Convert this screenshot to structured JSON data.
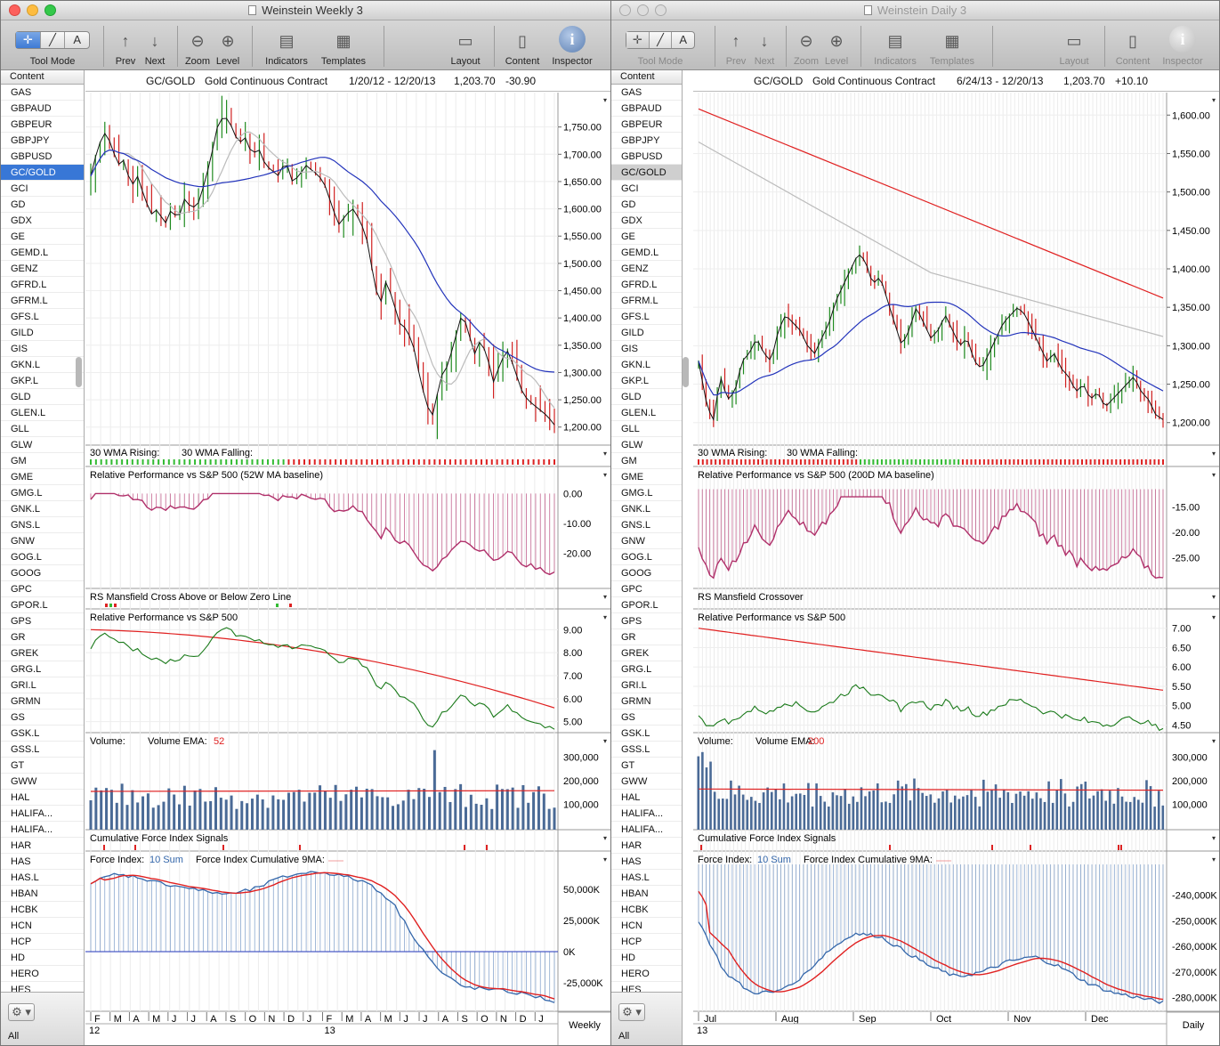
{
  "windows": [
    {
      "title": "Weinstein Weekly 3",
      "header": {
        "symbol": "GC/GOLD",
        "name": "Gold Continuous Contract",
        "range": "1/20/12 - 12/20/13",
        "price": "1,203.70",
        "change": "-30.90"
      },
      "selected": "GC/GOLD",
      "panels": {
        "wma": {
          "label": "30 WMA Rising:",
          "label2": "30 WMA Falling:"
        },
        "rp": {
          "label": "Relative Performance vs S&P 500 (52W MA baseline)",
          "ticks": [
            "0.00",
            "-10.00",
            "-20.00"
          ]
        },
        "rsm": {
          "label": "RS Mansfield Cross Above or Below Zero Line"
        },
        "rp2": {
          "label": "Relative Performance vs S&P 500",
          "ticks": [
            "9.00",
            "8.00",
            "7.00",
            "6.00",
            "5.00"
          ]
        },
        "vol": {
          "label": "Volume:",
          "ema_label": "Volume EMA:",
          "ema_value": "52",
          "ticks": [
            "300,000",
            "200,000",
            "100,000"
          ]
        },
        "cfs": {
          "label": "Cumulative Force Index Signals"
        },
        "fi": {
          "label": "Force Index:",
          "sum_label": "10 Sum",
          "cum_label": "Force Index Cumulative 9MA:",
          "ticks": [
            "50,000K",
            "25,000K",
            "0K",
            "-25,000K"
          ]
        }
      },
      "price_ticks": [
        "1,750.00",
        "1,700.00",
        "1,650.00",
        "1,600.00",
        "1,550.00",
        "1,500.00",
        "1,450.00",
        "1,400.00",
        "1,350.00",
        "1,300.00",
        "1,250.00",
        "1,200.00"
      ],
      "x_months": [
        "F",
        "M",
        "A",
        "M",
        "J",
        "J",
        "A",
        "S",
        "O",
        "N",
        "D",
        "J",
        "F",
        "M",
        "A",
        "M",
        "J",
        "J",
        "A",
        "S",
        "O",
        "N",
        "D",
        "J"
      ],
      "x_years": [
        "12",
        "13"
      ],
      "period": "Weekly"
    },
    {
      "title": "Weinstein Daily 3",
      "header": {
        "symbol": "GC/GOLD",
        "name": "Gold Continuous Contract",
        "range": "6/24/13 - 12/20/13",
        "price": "1,203.70",
        "change": "+10.10"
      },
      "selected": "GC/GOLD",
      "panels": {
        "wma": {
          "label": "30 WMA Rising:",
          "label2": "30 WMA Falling:"
        },
        "rp": {
          "label": "Relative Performance vs S&P 500 (200D MA baseline)",
          "ticks": [
            "-15.00",
            "-20.00",
            "-25.00"
          ]
        },
        "rsm": {
          "label": "RS Mansfield Crossover"
        },
        "rp2": {
          "label": "Relative Performance vs S&P 500",
          "ticks": [
            "7.00",
            "6.50",
            "6.00",
            "5.50",
            "5.00",
            "4.50"
          ]
        },
        "vol": {
          "label": "Volume:",
          "ema_label": "Volume EMA:",
          "ema_value": "200",
          "ticks": [
            "300,000",
            "200,000",
            "100,000"
          ]
        },
        "cfs": {
          "label": "Cumulative Force Index Signals"
        },
        "fi": {
          "label": "Force Index:",
          "sum_label": "10 Sum",
          "cum_label": "Force Index Cumulative 9MA:",
          "ticks": [
            "-240,000K",
            "-250,000K",
            "-260,000K",
            "-270,000K",
            "-280,000K"
          ]
        }
      },
      "price_ticks": [
        "1,600.00",
        "1,550.00",
        "1,500.00",
        "1,450.00",
        "1,400.00",
        "1,350.00",
        "1,300.00",
        "1,250.00",
        "1,200.00"
      ],
      "x_months": [
        "Jul",
        "Aug",
        "Sep",
        "Oct",
        "Nov",
        "Dec"
      ],
      "x_years": [
        "13"
      ],
      "period": "Daily"
    }
  ],
  "toolbar": {
    "tool_mode": "Tool Mode",
    "prev": "Prev",
    "next": "Next",
    "zoom": "Zoom",
    "level": "Level",
    "indicators": "Indicators",
    "templates": "Templates",
    "layout": "Layout",
    "content": "Content",
    "inspector": "Inspector",
    "tool_glyphs": [
      "✛",
      "╱",
      "A"
    ]
  },
  "sidebar": {
    "header": "Content",
    "items": [
      "GAS",
      "GBPAUD",
      "GBPEUR",
      "GBPJPY",
      "GBPUSD",
      "GC/GOLD",
      "GCI",
      "GD",
      "GDX",
      "GE",
      "GEMD.L",
      "GENZ",
      "GFRD.L",
      "GFRM.L",
      "GFS.L",
      "GILD",
      "GIS",
      "GKN.L",
      "GKP.L",
      "GLD",
      "GLEN.L",
      "GLL",
      "GLW",
      "GM",
      "GME",
      "GMG.L",
      "GNK.L",
      "GNS.L",
      "GNW",
      "GOG.L",
      "GOOG",
      "GPC",
      "GPOR.L",
      "GPS",
      "GR",
      "GREK",
      "GRG.L",
      "GRI.L",
      "GRMN",
      "GS",
      "GSK.L",
      "GSS.L",
      "GT",
      "GWW",
      "HAL",
      "HALIFA...",
      "HALIFA...",
      "HAR",
      "HAS",
      "HAS.L",
      "HBAN",
      "HCBK",
      "HCN",
      "HCP",
      "HD",
      "HERO",
      "HES"
    ],
    "footer_label": "All"
  },
  "colors": {
    "up": "#1e8a1e",
    "down": "#d02020",
    "ma_blue": "#2233bb",
    "ma_red": "#e02020",
    "ma_gray": "#bbbbbb",
    "rp": "#b0306a",
    "vol": "#4a6a96",
    "fi": "#3366aa"
  },
  "chart_data": [
    {
      "type": "line",
      "title": "GC/GOLD Gold Continuous Contract",
      "period": "Weekly",
      "close_series": [
        1660,
        1710,
        1740,
        1720,
        1680,
        1690,
        1640,
        1660,
        1620,
        1590,
        1600,
        1570,
        1600,
        1580,
        1620,
        1600,
        1610,
        1650,
        1700,
        1760,
        1770,
        1750,
        1720,
        1730,
        1700,
        1710,
        1680,
        1670,
        1660,
        1690,
        1650,
        1660,
        1680,
        1670,
        1660,
        1640,
        1600,
        1570,
        1590,
        1600,
        1580,
        1550,
        1480,
        1420,
        1470,
        1430,
        1390,
        1380,
        1350,
        1290,
        1240,
        1220,
        1290,
        1310,
        1350,
        1400,
        1390,
        1330,
        1360,
        1330,
        1280,
        1320,
        1340,
        1310,
        1270,
        1250,
        1240,
        1230,
        1220,
        1204
      ],
      "ylim": [
        1180,
        1800
      ]
    },
    {
      "type": "line",
      "title": "GC/GOLD Gold Continuous Contract",
      "period": "Daily",
      "close_series": [
        1280,
        1230,
        1200,
        1260,
        1230,
        1240,
        1280,
        1290,
        1310,
        1290,
        1280,
        1320,
        1340,
        1330,
        1320,
        1300,
        1290,
        1310,
        1330,
        1360,
        1380,
        1400,
        1420,
        1410,
        1380,
        1390,
        1360,
        1330,
        1300,
        1320,
        1350,
        1330,
        1310,
        1320,
        1340,
        1320,
        1300,
        1310,
        1280,
        1270,
        1290,
        1310,
        1330,
        1340,
        1350,
        1340,
        1320,
        1300,
        1280,
        1290,
        1270,
        1260,
        1240,
        1250,
        1230,
        1240,
        1220,
        1230,
        1240,
        1250,
        1260,
        1240,
        1230,
        1210,
        1204
      ],
      "ylim": [
        1180,
        1620
      ]
    }
  ]
}
